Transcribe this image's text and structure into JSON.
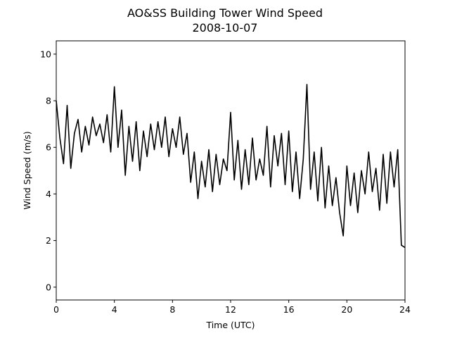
{
  "chart_data": {
    "type": "line",
    "title": "AO&SS Building Tower Wind Speed",
    "subtitle": "2008-10-07",
    "x_label": "Time (UTC)",
    "y_label": "Wind Speed (m/s)",
    "xlim": [
      0,
      24
    ],
    "ylim": [
      -0.55,
      10.57
    ],
    "xticks": [
      0,
      4,
      8,
      12,
      16,
      20,
      24
    ],
    "yticks": [
      0,
      2,
      4,
      6,
      8,
      10
    ],
    "grid": false,
    "series": [
      {
        "name": "Wind Speed",
        "color": "#000000",
        "x": [
          0,
          0.25,
          0.5,
          0.75,
          1,
          1.25,
          1.5,
          1.75,
          2,
          2.25,
          2.5,
          2.75,
          3,
          3.25,
          3.5,
          3.75,
          4,
          4.25,
          4.5,
          4.75,
          5,
          5.25,
          5.5,
          5.75,
          6,
          6.25,
          6.5,
          6.75,
          7,
          7.25,
          7.5,
          7.75,
          8,
          8.25,
          8.5,
          8.75,
          9,
          9.25,
          9.5,
          9.75,
          10,
          10.25,
          10.5,
          10.75,
          11,
          11.25,
          11.5,
          11.75,
          12,
          12.25,
          12.5,
          12.75,
          13,
          13.25,
          13.5,
          13.75,
          14,
          14.25,
          14.5,
          14.75,
          15,
          15.25,
          15.5,
          15.75,
          16,
          16.25,
          16.5,
          16.75,
          17,
          17.25,
          17.5,
          17.75,
          18,
          18.25,
          18.5,
          18.75,
          19,
          19.25,
          19.5,
          19.75,
          20,
          20.25,
          20.5,
          20.75,
          21,
          21.25,
          21.5,
          21.75,
          22,
          22.25,
          22.5,
          22.75,
          23,
          23.25,
          23.5,
          23.75,
          24
        ],
        "values": [
          8.0,
          6.4,
          5.3,
          7.8,
          5.1,
          6.6,
          7.2,
          5.8,
          6.9,
          6.1,
          7.3,
          6.5,
          7.0,
          6.2,
          7.4,
          5.8,
          8.6,
          6.0,
          7.6,
          4.8,
          6.9,
          5.4,
          7.1,
          5.0,
          6.7,
          5.6,
          7.0,
          5.9,
          7.1,
          6.0,
          7.3,
          5.6,
          6.8,
          6.0,
          7.3,
          5.7,
          6.6,
          4.5,
          5.8,
          3.8,
          5.4,
          4.3,
          5.9,
          4.1,
          5.7,
          4.4,
          5.5,
          5.0,
          7.5,
          4.6,
          6.3,
          4.2,
          5.9,
          4.4,
          6.4,
          4.6,
          5.5,
          4.8,
          6.9,
          4.3,
          6.5,
          5.2,
          6.6,
          4.4,
          6.7,
          4.1,
          5.8,
          3.8,
          5.5,
          8.7,
          4.2,
          5.8,
          3.7,
          6.0,
          3.4,
          5.2,
          3.5,
          4.7,
          3.2,
          2.2,
          5.2,
          3.5,
          4.9,
          3.2,
          5.0,
          4.0,
          5.8,
          4.1,
          5.1,
          3.3,
          5.7,
          3.6,
          5.8,
          4.3,
          5.9,
          1.8,
          1.7
        ]
      }
    ]
  }
}
